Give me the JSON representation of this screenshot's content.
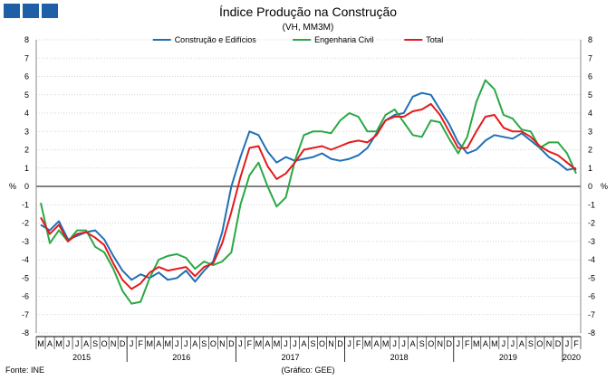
{
  "header": {
    "title": "Índice Produção na Construção",
    "subtitle": "(VH, MM3M)"
  },
  "footer": {
    "source": "Fonte: INE",
    "credit": "(Gráfico: GEE)"
  },
  "colors": {
    "construcao": "#1f6fb5",
    "engenharia": "#2aa845",
    "total": "#e41a1c",
    "logo": "#1f5fa8"
  },
  "chart_data": {
    "type": "line",
    "ylabel_left": "%",
    "ylabel_right": "%",
    "ylim": [
      -8,
      8
    ],
    "yticks": [
      8,
      7,
      6,
      5,
      4,
      3,
      2,
      1,
      0,
      -1,
      -2,
      -3,
      -4,
      -5,
      -6,
      -7,
      -8
    ],
    "grid": true,
    "legend_position": "top",
    "month_labels": [
      "M",
      "A",
      "M",
      "J",
      "J",
      "A",
      "S",
      "O",
      "N",
      "D",
      "J",
      "F",
      "M",
      "A",
      "M",
      "J",
      "J",
      "A",
      "S",
      "O",
      "N",
      "D",
      "J",
      "F",
      "M",
      "A",
      "M",
      "J",
      "J",
      "A",
      "S",
      "O",
      "N",
      "D",
      "J",
      "F",
      "M",
      "A",
      "M",
      "J",
      "J",
      "A",
      "S",
      "O",
      "N",
      "D",
      "J",
      "F",
      "M",
      "A",
      "M",
      "J",
      "J",
      "A",
      "S",
      "O",
      "N",
      "D",
      "J",
      "F"
    ],
    "year_labels": [
      {
        "label": "2015",
        "start": 0,
        "end": 9
      },
      {
        "label": "2016",
        "start": 10,
        "end": 21
      },
      {
        "label": "2017",
        "start": 22,
        "end": 33
      },
      {
        "label": "2018",
        "start": 34,
        "end": 45
      },
      {
        "label": "2019",
        "start": 46,
        "end": 57
      },
      {
        "label": "2020",
        "start": 58,
        "end": 59
      }
    ],
    "series": [
      {
        "name": "Construção e Edifícios",
        "color_key": "construcao",
        "values": [
          -2.1,
          -2.4,
          -1.9,
          -2.9,
          -2.7,
          -2.5,
          -2.4,
          -2.9,
          -3.8,
          -4.6,
          -5.1,
          -4.8,
          -5.0,
          -4.7,
          -5.1,
          -5.0,
          -4.6,
          -5.2,
          -4.6,
          -4.1,
          -2.5,
          0.0,
          1.6,
          3.0,
          2.8,
          1.9,
          1.3,
          1.6,
          1.4,
          1.5,
          1.6,
          1.8,
          1.5,
          1.4,
          1.5,
          1.7,
          2.1,
          2.9,
          3.6,
          3.9,
          4.0,
          4.9,
          5.1,
          5.0,
          4.2,
          3.4,
          2.4,
          1.8,
          2.0,
          2.5,
          2.8,
          2.7,
          2.6,
          2.9,
          2.5,
          2.1,
          1.6,
          1.3,
          0.9,
          1.0
        ]
      },
      {
        "name": "Engenharia Civil",
        "color_key": "engenharia",
        "values": [
          -0.9,
          -3.1,
          -2.4,
          -3.0,
          -2.4,
          -2.4,
          -3.3,
          -3.6,
          -4.5,
          -5.7,
          -6.4,
          -6.3,
          -5.0,
          -4.0,
          -3.8,
          -3.7,
          -3.9,
          -4.5,
          -4.1,
          -4.3,
          -4.1,
          -3.6,
          -1.0,
          0.6,
          1.3,
          0.0,
          -1.1,
          -0.6,
          1.4,
          2.8,
          3.0,
          3.0,
          2.9,
          3.6,
          4.0,
          3.8,
          3.0,
          3.0,
          3.9,
          4.2,
          3.5,
          2.8,
          2.7,
          3.6,
          3.5,
          2.6,
          1.8,
          2.7,
          4.6,
          5.8,
          5.3,
          3.9,
          3.7,
          3.1,
          3.0,
          2.1,
          2.4,
          2.4,
          1.8,
          0.7
        ]
      },
      {
        "name": "Total",
        "color_key": "total",
        "values": [
          -1.7,
          -2.6,
          -2.1,
          -3.0,
          -2.6,
          -2.5,
          -2.8,
          -3.2,
          -4.2,
          -5.1,
          -5.6,
          -5.3,
          -4.7,
          -4.4,
          -4.6,
          -4.5,
          -4.4,
          -4.9,
          -4.4,
          -4.2,
          -3.1,
          -1.4,
          0.5,
          2.1,
          2.2,
          1.1,
          0.4,
          0.7,
          1.3,
          2.0,
          2.1,
          2.2,
          2.0,
          2.2,
          2.4,
          2.5,
          2.4,
          2.8,
          3.6,
          3.8,
          3.8,
          4.1,
          4.2,
          4.5,
          3.9,
          3.0,
          2.1,
          2.1,
          3.0,
          3.8,
          3.9,
          3.2,
          3.0,
          3.0,
          2.7,
          2.2,
          1.9,
          1.7,
          1.3,
          0.9
        ]
      }
    ]
  }
}
